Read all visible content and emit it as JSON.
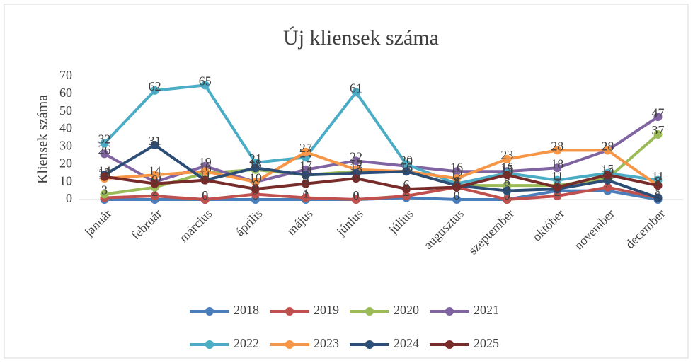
{
  "chart_data": {
    "type": "line",
    "title": "Új kliensek száma",
    "y_label": "Kliensek száma",
    "categories": [
      "január",
      "február",
      "március",
      "április",
      "május",
      "június",
      "július",
      "augusztus",
      "szeptember",
      "október",
      "november",
      "december"
    ],
    "ylim": [
      0,
      70
    ],
    "yticks": [
      0,
      10,
      20,
      30,
      40,
      50,
      60,
      70
    ],
    "grid": false,
    "data_labels": true,
    "legend": "bottom",
    "series": [
      {
        "name": "2018",
        "color": "#4a7ebb",
        "values": [
          0,
          0,
          0,
          0,
          0,
          0,
          1,
          0,
          0,
          5,
          5,
          0
        ]
      },
      {
        "name": "2019",
        "color": "#c0504d",
        "values": [
          1,
          2,
          0,
          3,
          1,
          0,
          2,
          7,
          0,
          2,
          7,
          1
        ]
      },
      {
        "name": "2020",
        "color": "#9bbb59",
        "values": [
          3,
          7,
          15,
          17,
          14,
          16,
          16,
          8,
          8,
          8,
          12,
          37
        ]
      },
      {
        "name": "2021",
        "color": "#8064a2",
        "values": [
          26,
          10,
          19,
          10,
          17,
          22,
          19,
          16,
          16,
          18,
          28,
          47
        ]
      },
      {
        "name": "2022",
        "color": "#4bacc6",
        "values": [
          32,
          62,
          65,
          21,
          24,
          61,
          20,
          9,
          15,
          11,
          15,
          11
        ]
      },
      {
        "name": "2023",
        "color": "#f79646",
        "values": [
          12,
          14,
          16,
          10,
          27,
          17,
          16,
          12,
          23,
          28,
          28,
          8
        ]
      },
      {
        "name": "2024",
        "color": "#2c4d75",
        "values": [
          14,
          31,
          11,
          18,
          14,
          15,
          16,
          8,
          5,
          6,
          11,
          1
        ]
      },
      {
        "name": "2025",
        "color": "#772c2a",
        "values": [
          13,
          9,
          11,
          6,
          9,
          12,
          6,
          7,
          14,
          7,
          14,
          8
        ]
      }
    ]
  }
}
